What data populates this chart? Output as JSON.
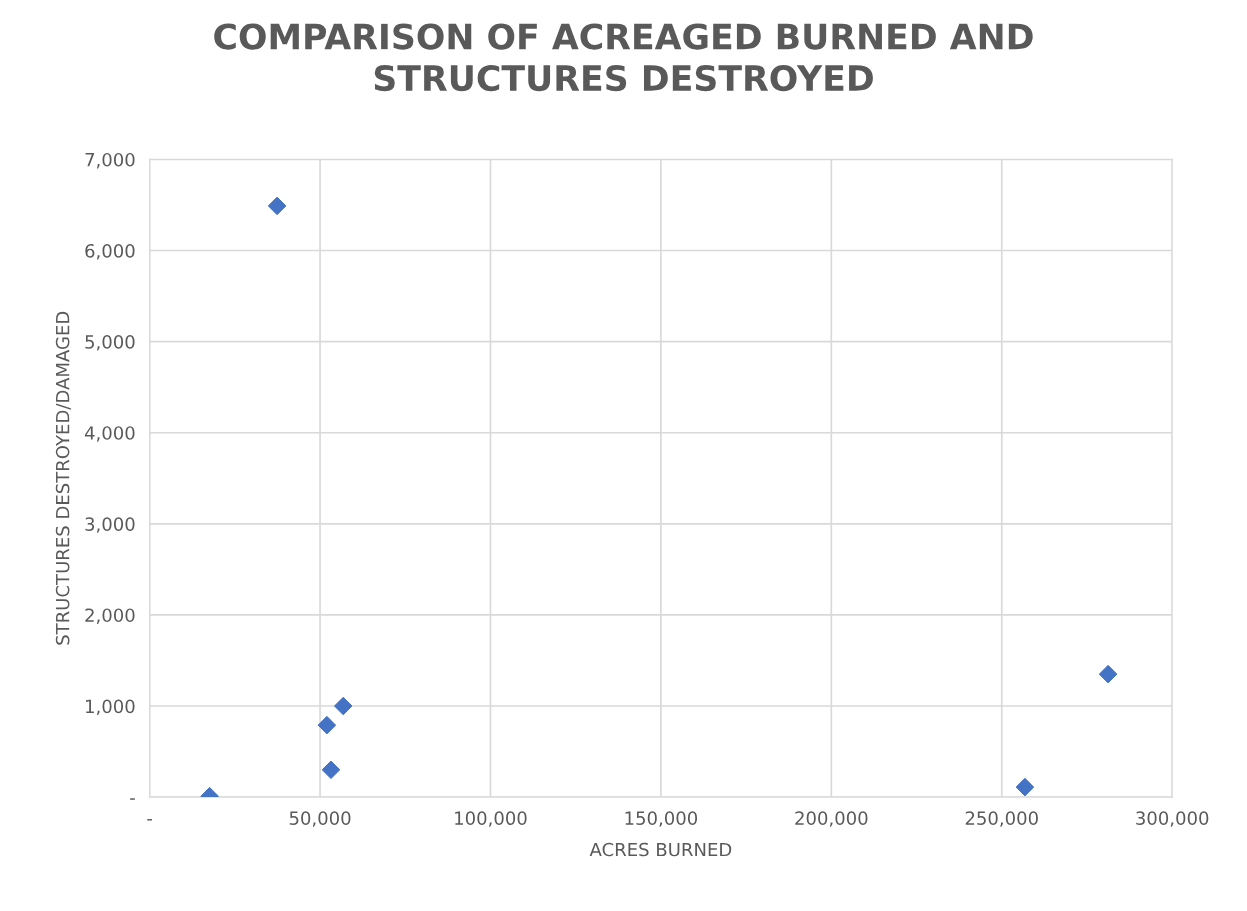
{
  "chart_data": {
    "type": "scatter",
    "title": "COMPARISON OF ACREAGED BURNED AND\nSTRUCTURES DESTROYED",
    "xlabel": "ACRES BURNED",
    "ylabel": "STRUCTURES DESTROYED/DAMAGED",
    "x": [
      17600,
      37400,
      52000,
      53200,
      56800,
      256800,
      281200
    ],
    "series": [
      {
        "color": "#4472c4",
        "values": [
          10,
          6490,
          790,
          300,
          1000,
          110,
          1350
        ]
      }
    ],
    "xlim": [
      0,
      300000
    ],
    "xticks": [
      {
        "value": 0,
        "label": "-"
      },
      {
        "value": 50000,
        "label": "50,000"
      },
      {
        "value": 100000,
        "label": "100,000"
      },
      {
        "value": 150000,
        "label": "150,000"
      },
      {
        "value": 200000,
        "label": "200,000"
      },
      {
        "value": 250000,
        "label": "250,000"
      },
      {
        "value": 300000,
        "label": "300,000"
      }
    ],
    "ylim": [
      0,
      7000
    ],
    "yticks": [
      {
        "value": 0,
        "label": "-"
      },
      {
        "value": 1000,
        "label": "1,000"
      },
      {
        "value": 2000,
        "label": "2,000"
      },
      {
        "value": 3000,
        "label": "3,000"
      },
      {
        "value": 4000,
        "label": "4,000"
      },
      {
        "value": 5000,
        "label": "5,000"
      },
      {
        "value": 6000,
        "label": "6,000"
      },
      {
        "value": 7000,
        "label": "7,000"
      }
    ],
    "grid": true,
    "marker": "diamond"
  }
}
